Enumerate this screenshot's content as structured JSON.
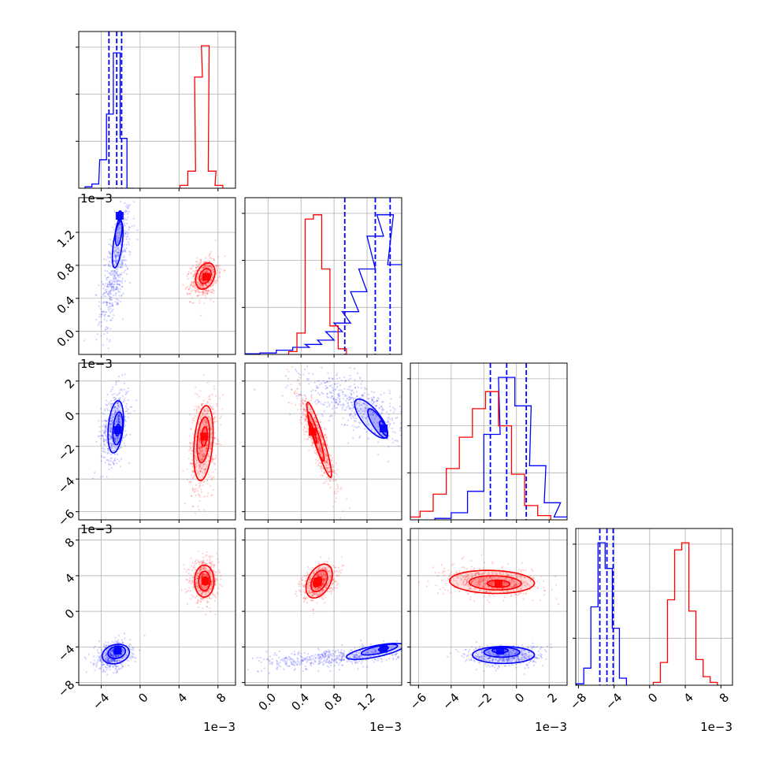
{
  "figure": {
    "type": "corner_plot",
    "description_colors": {
      "series_a": "#0000ff",
      "series_b": "#ff0000"
    }
  },
  "chart_data": {
    "type": "corner",
    "parameters": [
      {
        "offset_label": "1e−3",
        "ticks": [
          -4,
          0,
          4,
          8
        ],
        "tick_labels": [
          "−4",
          "0",
          "4",
          "8"
        ],
        "range": [
          -6.3,
          9.8
        ]
      },
      {
        "offset_label": "1e−3",
        "ticks": [
          0.0,
          0.4,
          0.8,
          1.2
        ],
        "tick_labels": [
          "0.0",
          "0.4",
          "0.8",
          "1.2"
        ],
        "range": [
          -0.28,
          1.62
        ]
      },
      {
        "offset_label": "1e−3",
        "ticks": [
          -6,
          -4,
          -2,
          0,
          2
        ],
        "tick_labels": [
          "−6",
          "−4",
          "−2",
          "0",
          "2"
        ],
        "range": [
          -6.5,
          3.1
        ]
      },
      {
        "offset_label": "1e−3",
        "ticks": [
          -8,
          -4,
          0,
          4,
          8
        ],
        "tick_labels": [
          "−8",
          "−4",
          "0",
          "4",
          "8"
        ],
        "range": [
          -8.3,
          9.3
        ]
      }
    ],
    "series": [
      {
        "color": "#0000ff",
        "quantiles": [
          [
            -3.2,
            -2.4,
            -1.9
          ],
          [
            0.93,
            1.3,
            1.48
          ],
          [
            -1.6,
            -0.6,
            0.6
          ],
          [
            -5.6,
            -4.8,
            -4.1
          ]
        ],
        "means": [
          -2.4,
          1.35,
          -0.6,
          -4.8
        ],
        "hist_bins": [
          [
            [
              -5.3,
              1
            ],
            [
              -4.6,
              3
            ],
            [
              -3.8,
              20
            ],
            [
              -3.1,
              52
            ],
            [
              -2.4,
              95
            ],
            [
              -1.7,
              35
            ],
            [
              -1.0,
              0
            ]
          ],
          [
            [
              -0.2,
              0.5
            ],
            [
              0.0,
              1
            ],
            [
              0.2,
              3
            ],
            [
              0.4,
              5
            ],
            [
              0.55,
              7
            ],
            [
              0.7,
              10
            ],
            [
              0.8,
              16
            ],
            [
              0.9,
              22
            ],
            [
              1.0,
              30
            ],
            [
              1.1,
              44
            ],
            [
              1.2,
              60
            ],
            [
              1.3,
              83
            ],
            [
              1.42,
              98
            ],
            [
              1.55,
              63
            ]
          ],
          [
            [
              -4.5,
              1
            ],
            [
              -3.5,
              5
            ],
            [
              -2.5,
              20
            ],
            [
              -1.5,
              60
            ],
            [
              -0.6,
              100
            ],
            [
              0.4,
              80
            ],
            [
              1.3,
              38
            ],
            [
              2.2,
              12
            ],
            [
              2.8,
              2
            ]
          ],
          [
            [
              -7.8,
              1
            ],
            [
              -7.0,
              12
            ],
            [
              -6.2,
              55
            ],
            [
              -5.4,
              100
            ],
            [
              -4.6,
              82
            ],
            [
              -3.8,
              40
            ],
            [
              -3.0,
              5
            ]
          ]
        ]
      },
      {
        "color": "#ff0000",
        "quantiles": [],
        "means": [
          6.6,
          0.62,
          -1.6,
          3.3
        ],
        "hist_bins": [
          [
            [
              4.5,
              2
            ],
            [
              5.3,
              12
            ],
            [
              6.0,
              78
            ],
            [
              6.7,
              100
            ],
            [
              7.4,
              12
            ],
            [
              8.1,
              2
            ]
          ],
          [
            [
              0.3,
              2
            ],
            [
              0.4,
              15
            ],
            [
              0.5,
              95
            ],
            [
              0.6,
              98
            ],
            [
              0.7,
              60
            ],
            [
              0.8,
              20
            ],
            [
              0.9,
              4
            ]
          ],
          [
            [
              -6.3,
              2
            ],
            [
              -5.5,
              6
            ],
            [
              -4.7,
              18
            ],
            [
              -3.9,
              36
            ],
            [
              -3.1,
              58
            ],
            [
              -2.3,
              78
            ],
            [
              -1.5,
              90
            ],
            [
              -0.7,
              66
            ],
            [
              0.1,
              32
            ],
            [
              0.9,
              10
            ],
            [
              1.7,
              3
            ]
          ],
          [
            [
              0.8,
              2
            ],
            [
              1.6,
              16
            ],
            [
              2.4,
              60
            ],
            [
              3.2,
              95
            ],
            [
              4.0,
              100
            ],
            [
              4.8,
              52
            ],
            [
              5.6,
              18
            ],
            [
              6.4,
              6
            ],
            [
              7.2,
              2
            ]
          ]
        ]
      }
    ],
    "pairs": [
      {
        "x": 0,
        "y": 1,
        "clouds": [
          {
            "series": 0,
            "mean": [
              -2.5,
              0.75
            ],
            "sd": [
              0.8,
              0.38
            ],
            "corr": 0.65,
            "n": 500,
            "contours": [
              [
                -2.3,
                1.05,
                0.55,
                0.28,
                0.55
              ],
              [
                -2.2,
                1.2,
                0.35,
                0.16,
                0.4
              ],
              [
                -2.1,
                1.4,
                0.2,
                0.06,
                0.3
              ]
            ]
          },
          {
            "series": 1,
            "mean": [
              6.6,
              0.65
            ],
            "sd": [
              0.7,
              0.12
            ],
            "corr": 0.3,
            "n": 600,
            "contours": [
              [
                6.7,
                0.67,
                1.0,
                0.16,
                0.3
              ],
              [
                6.7,
                0.67,
                0.6,
                0.09,
                0.3
              ],
              [
                6.8,
                0.66,
                0.25,
                0.04,
                0.3
              ]
            ]
          }
        ]
      },
      {
        "x": 0,
        "y": 2,
        "clouds": [
          {
            "series": 0,
            "mean": [
              -2.6,
              -0.7
            ],
            "sd": [
              0.7,
              1.1
            ],
            "corr": 0.3,
            "n": 500,
            "contours": [
              [
                -2.5,
                -0.8,
                0.8,
                1.6,
                0.3
              ],
              [
                -2.3,
                -0.9,
                0.5,
                1.0,
                0.3
              ],
              [
                -2.3,
                -1.0,
                0.22,
                0.35,
                0.3
              ]
            ]
          },
          {
            "series": 1,
            "mean": [
              6.5,
              -1.8
            ],
            "sd": [
              0.7,
              1.5
            ],
            "corr": 0.3,
            "n": 600,
            "contours": [
              [
                6.5,
                -1.8,
                1.0,
                2.3,
                0.3
              ],
              [
                6.5,
                -1.6,
                0.65,
                1.4,
                0.3
              ],
              [
                6.6,
                -1.4,
                0.3,
                0.6,
                0.3
              ]
            ]
          }
        ]
      },
      {
        "x": 0,
        "y": 3,
        "clouds": [
          {
            "series": 0,
            "mean": [
              -2.8,
              -5.0
            ],
            "sd": [
              0.9,
              0.8
            ],
            "corr": 0.2,
            "n": 500,
            "contours": [
              [
                -2.5,
                -4.8,
                1.4,
                1.1,
                0.2
              ],
              [
                -2.4,
                -4.6,
                0.9,
                0.7,
                0.2
              ],
              [
                -2.3,
                -4.4,
                0.35,
                0.3,
                0.2
              ]
            ]
          },
          {
            "series": 1,
            "mean": [
              6.6,
              3.4
            ],
            "sd": [
              0.7,
              1.1
            ],
            "corr": 0.0,
            "n": 600,
            "contours": [
              [
                6.6,
                3.4,
                1.0,
                1.8,
                0.0
              ],
              [
                6.6,
                3.4,
                0.6,
                1.1,
                0.0
              ],
              [
                6.7,
                3.4,
                0.25,
                0.45,
                0.0
              ]
            ]
          }
        ]
      },
      {
        "x": 1,
        "y": 2,
        "clouds": [
          {
            "series": 0,
            "mean": [
              1.1,
              0.5
            ],
            "sd": [
              0.35,
              1.0
            ],
            "corr": -0.6,
            "n": 500,
            "contours": [
              [
                1.25,
                -0.3,
                0.2,
                1.2,
                -0.75
              ],
              [
                1.33,
                -0.6,
                0.12,
                0.9,
                -0.8
              ],
              [
                1.4,
                -0.9,
                0.05,
                0.45,
                -0.7
              ]
            ]
          },
          {
            "series": 1,
            "mean": [
              0.6,
              -1.6
            ],
            "sd": [
              0.12,
              1.5
            ],
            "corr": -0.9,
            "n": 600,
            "contours": [
              [
                0.62,
                -1.6,
                0.15,
                2.3,
                -0.92
              ],
              [
                0.58,
                -1.4,
                0.1,
                1.5,
                -0.92
              ],
              [
                0.54,
                -1.1,
                0.05,
                0.7,
                -0.92
              ]
            ]
          }
        ]
      },
      {
        "x": 1,
        "y": 3,
        "clouds": [
          {
            "series": 0,
            "mean": [
              0.8,
              -5.2
            ],
            "sd": [
              0.45,
              0.6
            ],
            "corr": 0.5,
            "n": 500,
            "contours": [
              [
                1.3,
                -4.5,
                0.35,
                0.9,
                0.7
              ],
              [
                1.35,
                -4.3,
                0.22,
                0.6,
                0.7
              ],
              [
                1.4,
                -4.2,
                0.06,
                0.25,
                0.5
              ]
            ]
          },
          {
            "series": 1,
            "mean": [
              0.62,
              3.3
            ],
            "sd": [
              0.1,
              1.0
            ],
            "corr": 0.4,
            "n": 600,
            "contours": [
              [
                0.62,
                3.4,
                0.16,
                1.9,
                0.4
              ],
              [
                0.62,
                3.4,
                0.1,
                1.2,
                0.4
              ],
              [
                0.6,
                3.3,
                0.05,
                0.55,
                0.4
              ]
            ]
          }
        ]
      },
      {
        "x": 2,
        "y": 3,
        "clouds": [
          {
            "series": 0,
            "mean": [
              -0.7,
              -5.0
            ],
            "sd": [
              1.2,
              0.6
            ],
            "corr": 0.0,
            "n": 500,
            "contours": [
              [
                -0.8,
                -4.9,
                1.9,
                0.95,
                0.0
              ],
              [
                -0.9,
                -4.6,
                1.1,
                0.55,
                0.0
              ],
              [
                -1.0,
                -4.4,
                0.5,
                0.25,
                0.0
              ]
            ]
          },
          {
            "series": 1,
            "mean": [
              -1.5,
              3.3
            ],
            "sd": [
              1.5,
              0.8
            ],
            "corr": -0.1,
            "n": 600,
            "contours": [
              [
                -1.5,
                3.3,
                2.6,
                1.3,
                -0.1
              ],
              [
                -1.3,
                3.2,
                1.6,
                0.8,
                -0.1
              ],
              [
                -1.1,
                3.1,
                0.7,
                0.4,
                -0.1
              ]
            ]
          }
        ]
      }
    ]
  }
}
